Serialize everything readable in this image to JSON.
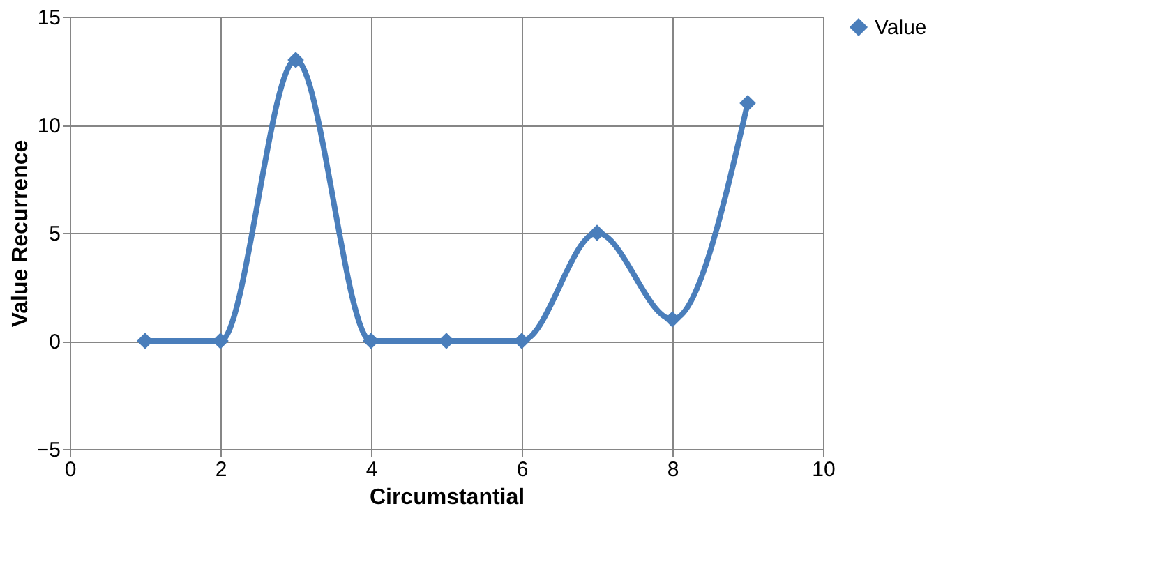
{
  "chart_data": {
    "type": "line",
    "xlabel": "Circumstantial",
    "ylabel": "Value Recurrence",
    "x": [
      1,
      2,
      3,
      4,
      5,
      6,
      7,
      8,
      9
    ],
    "series": [
      {
        "name": "Value",
        "color": "#4a7ebb",
        "values": [
          0,
          0,
          13,
          0,
          0,
          0,
          5,
          1,
          11
        ]
      }
    ],
    "xlim": [
      0,
      10
    ],
    "xticks": [
      0,
      2,
      4,
      6,
      8,
      10
    ],
    "ylim": [
      -5,
      15
    ],
    "yticks": [
      -5,
      0,
      5,
      10,
      15
    ],
    "grid": true,
    "legend": "right",
    "marker": "diamond",
    "line_style": "solid"
  }
}
